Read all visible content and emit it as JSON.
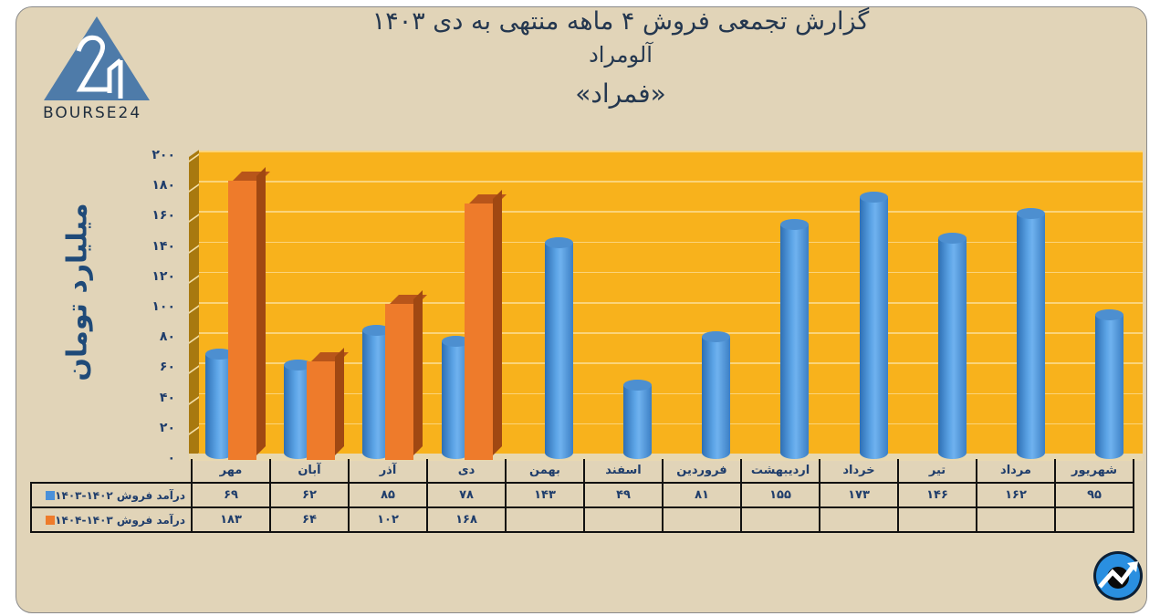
{
  "header": {
    "title_line1": "گزارش تجمعی فروش ۴ ماهه منتهی به دی ۱۴۰۳",
    "title_line2": "آلومراد",
    "title_line3": "«فمراد»"
  },
  "logo": {
    "text": "BOURSE24",
    "mark": "24"
  },
  "axis": {
    "ylabel": "میلیارد تومان",
    "yticks": [
      "۲۰۰",
      "۱۸۰",
      "۱۶۰",
      "۱۴۰",
      "۱۲۰",
      "۱۰۰",
      "۸۰",
      "۶۰",
      "۴۰",
      "۲۰",
      "۰"
    ]
  },
  "table": {
    "categories": [
      "مهر",
      "آبان",
      "آذر",
      "دی",
      "بهمن",
      "اسفند",
      "فروردین",
      "اردیبهشت",
      "خرداد",
      "تیر",
      "مرداد",
      "شهریور"
    ],
    "series": [
      {
        "name": "درآمد فروش ۱۴۰۲-۱۴۰۳",
        "color": "#4a90d9",
        "cells": [
          "۶۹",
          "۶۲",
          "۸۵",
          "۷۸",
          "۱۴۳",
          "۴۹",
          "۸۱",
          "۱۵۵",
          "۱۷۳",
          "۱۴۶",
          "۱۶۲",
          "۹۵"
        ]
      },
      {
        "name": "درآمد فروش ۱۴۰۳-۱۴۰۴",
        "color": "#ee7b2b",
        "cells": [
          "۱۸۳",
          "۶۴",
          "۱۰۲",
          "۱۶۸",
          "",
          "",
          "",
          "",
          "",
          "",
          "",
          ""
        ]
      }
    ]
  },
  "chart_data": {
    "type": "bar",
    "title": "گزارش تجمعی فروش ۴ ماهه منتهی به دی ۱۴۰۳ — آلومراد «فمراد»",
    "xlabel": "",
    "ylabel": "میلیارد تومان",
    "ylim": [
      0,
      200
    ],
    "yticks": [
      0,
      20,
      40,
      60,
      80,
      100,
      120,
      140,
      160,
      180,
      200
    ],
    "grid": true,
    "legend_position": "data table (bottom-left)",
    "categories": [
      "مهر",
      "آبان",
      "آذر",
      "دی",
      "بهمن",
      "اسفند",
      "فروردین",
      "اردیبهشت",
      "خرداد",
      "تیر",
      "مرداد",
      "شهریور"
    ],
    "series": [
      {
        "name": "درآمد فروش ۱۴۰۲-۱۴۰۳",
        "shape": "cylinder",
        "color": "#4a90d9",
        "values": [
          69,
          62,
          85,
          78,
          143,
          49,
          81,
          155,
          173,
          146,
          162,
          95
        ]
      },
      {
        "name": "درآمد فروش ۱۴۰۳-۱۴۰۴",
        "shape": "box",
        "color": "#ee7b2b",
        "values": [
          183,
          64,
          102,
          168,
          null,
          null,
          null,
          null,
          null,
          null,
          null,
          null
        ]
      }
    ],
    "colors": {
      "plot_background": "#f8b21c",
      "page_background": "#e1d4b8",
      "text": "#1f3d6b"
    }
  }
}
